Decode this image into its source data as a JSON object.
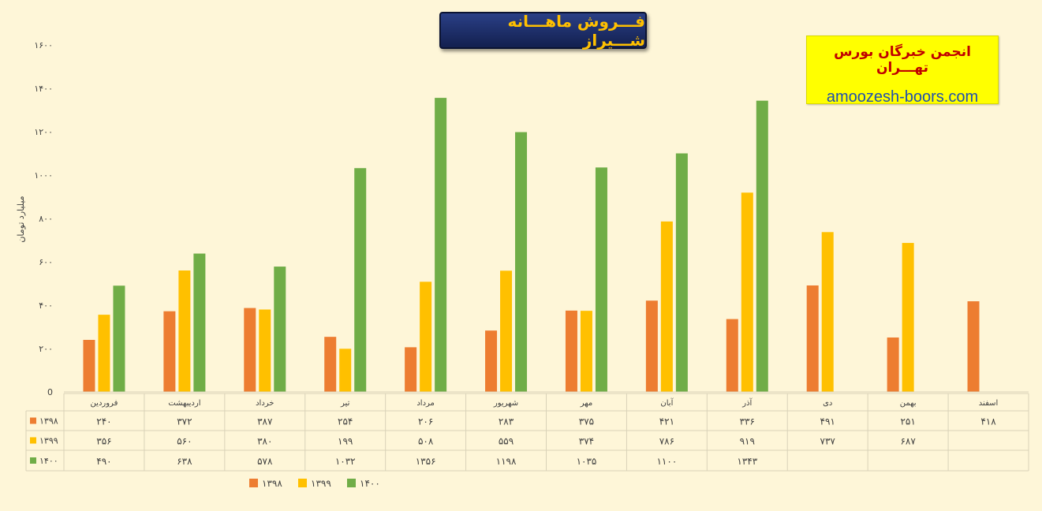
{
  "header": {
    "title": "فـــروش ماهـــانه شـــیراز"
  },
  "brand": {
    "name": "انجمن خبرگان بورس تهـــران",
    "site": "amoozesh-boors.com"
  },
  "colors": {
    "background": "#fef6d8",
    "grid": "#d9d2b8",
    "title_bg": "#1b2a63",
    "title_text": "#ffc000",
    "brand_bg": "#ffff00",
    "brand_name": "#c00000",
    "brand_site": "#1f4fb0"
  },
  "chart_data": {
    "type": "bar",
    "title": "فـــروش ماهـــانه شـــیراز",
    "ylabel": "میلیارد تومان",
    "xlabel": "",
    "ylim": [
      0,
      1600
    ],
    "yticks": [
      0,
      200,
      400,
      600,
      800,
      1000,
      1200,
      1400,
      1600
    ],
    "ytick_labels": [
      "0",
      "۲۰۰",
      "۴۰۰",
      "۶۰۰",
      "۸۰۰",
      "۱۰۰۰",
      "۱۲۰۰",
      "۱۴۰۰",
      "۱۶۰۰"
    ],
    "grid": false,
    "legend_position": "bottom",
    "categories": [
      "فروردین",
      "اردیبهشت",
      "خرداد",
      "تیر",
      "مرداد",
      "شهریور",
      "مهر",
      "آبان",
      "آذر",
      "دی",
      "بهمن",
      "اسفند"
    ],
    "series": [
      {
        "name": "۱۳۹۸",
        "color": "#ed7d31",
        "values": [
          240,
          372,
          387,
          254,
          206,
          283,
          375,
          421,
          336,
          491,
          251,
          418
        ],
        "labels": [
          "۲۴۰",
          "۳۷۲",
          "۳۸۷",
          "۲۵۴",
          "۲۰۶",
          "۲۸۳",
          "۳۷۵",
          "۴۲۱",
          "۳۳۶",
          "۴۹۱",
          "۲۵۱",
          "۴۱۸"
        ]
      },
      {
        "name": "۱۳۹۹",
        "color": "#ffc000",
        "values": [
          356,
          560,
          380,
          199,
          508,
          559,
          374,
          786,
          919,
          737,
          687,
          null
        ],
        "labels": [
          "۳۵۶",
          "۵۶۰",
          "۳۸۰",
          "۱۹۹",
          "۵۰۸",
          "۵۵۹",
          "۳۷۴",
          "۷۸۶",
          "۹۱۹",
          "۷۳۷",
          "۶۸۷",
          ""
        ]
      },
      {
        "name": "۱۴۰۰",
        "color": "#70ad47",
        "values": [
          490,
          638,
          578,
          1032,
          1356,
          1198,
          1035,
          1100,
          1343,
          null,
          null,
          null
        ],
        "labels": [
          "۴۹۰",
          "۶۳۸",
          "۵۷۸",
          "۱۰۳۲",
          "۱۳۵۶",
          "۱۱۹۸",
          "۱۰۳۵",
          "۱۱۰۰",
          "۱۳۴۳",
          "",
          "",
          ""
        ]
      }
    ]
  }
}
